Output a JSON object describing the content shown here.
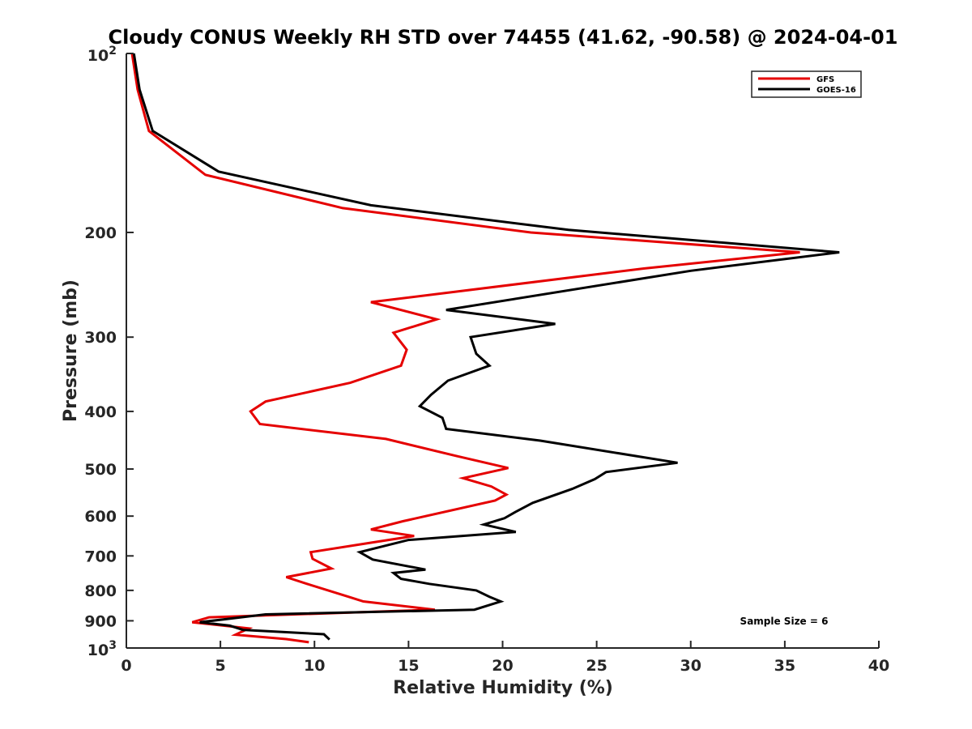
{
  "chart_data": {
    "type": "line",
    "title": "Cloudy CONUS Weekly RH STD over 74455 (41.62, -90.58) @ 2024-04-01",
    "xlabel": "Relative Humidity (%)",
    "ylabel": "Pressure (mb)",
    "xlim": [
      0,
      40
    ],
    "ylim": [
      100,
      1000
    ],
    "y_scale": "log",
    "y_reversed": true,
    "grid": false,
    "legend_position": "top-right",
    "x_ticks": [
      0,
      5,
      10,
      15,
      20,
      25,
      30,
      35,
      40
    ],
    "x_tick_labels": [
      "0",
      "5",
      "10",
      "15",
      "20",
      "25",
      "30",
      "35",
      "40"
    ],
    "y_ticks": [
      {
        "value": 100,
        "base": "10",
        "exp": "2",
        "label": ""
      },
      {
        "value": 200,
        "base": "",
        "exp": "",
        "label": "200"
      },
      {
        "value": 300,
        "base": "",
        "exp": "",
        "label": "300"
      },
      {
        "value": 400,
        "base": "",
        "exp": "",
        "label": "400"
      },
      {
        "value": 500,
        "base": "",
        "exp": "",
        "label": "500"
      },
      {
        "value": 600,
        "base": "",
        "exp": "",
        "label": "600"
      },
      {
        "value": 700,
        "base": "",
        "exp": "",
        "label": "700"
      },
      {
        "value": 800,
        "base": "",
        "exp": "",
        "label": "800"
      },
      {
        "value": 900,
        "base": "",
        "exp": "",
        "label": "900"
      },
      {
        "value": 1000,
        "base": "10",
        "exp": "3",
        "label": ""
      }
    ],
    "series": [
      {
        "name": "GFS",
        "color": "#e50000",
        "points": [
          [
            0.3,
            100
          ],
          [
            0.6,
            115
          ],
          [
            1.2,
            135
          ],
          [
            4.2,
            160
          ],
          [
            11.5,
            182
          ],
          [
            21.5,
            200
          ],
          [
            35.8,
            216
          ],
          [
            27.5,
            230
          ],
          [
            13.0,
            262
          ],
          [
            16.5,
            280
          ],
          [
            14.2,
            295
          ],
          [
            14.9,
            315
          ],
          [
            14.6,
            335
          ],
          [
            11.9,
            358
          ],
          [
            7.4,
            385
          ],
          [
            6.6,
            400
          ],
          [
            7.1,
            420
          ],
          [
            13.8,
            445
          ],
          [
            17.5,
            475
          ],
          [
            20.3,
            498
          ],
          [
            17.9,
            518
          ],
          [
            19.4,
            535
          ],
          [
            20.2,
            552
          ],
          [
            19.6,
            565
          ],
          [
            14.7,
            612
          ],
          [
            13.0,
            632
          ],
          [
            15.3,
            648
          ],
          [
            13.0,
            665
          ],
          [
            9.8,
            690
          ],
          [
            9.9,
            708
          ],
          [
            10.9,
            735
          ],
          [
            8.5,
            760
          ],
          [
            9.6,
            780
          ],
          [
            11.8,
            820
          ],
          [
            12.6,
            835
          ],
          [
            16.4,
            862
          ],
          [
            4.4,
            888
          ],
          [
            3.5,
            905
          ],
          [
            6.5,
            927
          ],
          [
            5.8,
            950
          ],
          [
            8.5,
            966
          ],
          [
            9.7,
            978
          ]
        ]
      },
      {
        "name": "GOES-16",
        "color": "#000000",
        "points": [
          [
            0.4,
            100
          ],
          [
            0.7,
            115
          ],
          [
            1.4,
            135
          ],
          [
            4.9,
            158
          ],
          [
            13.0,
            180
          ],
          [
            23.5,
            198
          ],
          [
            37.9,
            216
          ],
          [
            30.0,
            232
          ],
          [
            17.0,
            270
          ],
          [
            22.8,
            285
          ],
          [
            18.3,
            300
          ],
          [
            18.6,
            320
          ],
          [
            19.3,
            335
          ],
          [
            17.1,
            355
          ],
          [
            16.2,
            375
          ],
          [
            15.6,
            392
          ],
          [
            16.8,
            410
          ],
          [
            17.0,
            428
          ],
          [
            22.0,
            448
          ],
          [
            29.3,
            488
          ],
          [
            25.5,
            506
          ],
          [
            24.9,
            520
          ],
          [
            23.7,
            540
          ],
          [
            21.6,
            570
          ],
          [
            20.7,
            590
          ],
          [
            20.1,
            605
          ],
          [
            19.0,
            620
          ],
          [
            20.7,
            638
          ],
          [
            15.0,
            658
          ],
          [
            12.4,
            690
          ],
          [
            13.1,
            710
          ],
          [
            15.9,
            738
          ],
          [
            14.2,
            748
          ],
          [
            14.6,
            765
          ],
          [
            16.1,
            780
          ],
          [
            18.6,
            800
          ],
          [
            19.3,
            820
          ],
          [
            19.9,
            835
          ],
          [
            18.5,
            862
          ],
          [
            7.4,
            878
          ],
          [
            3.9,
            905
          ],
          [
            5.5,
            917
          ],
          [
            6.2,
            932
          ],
          [
            10.5,
            948
          ],
          [
            10.8,
            968
          ]
        ]
      }
    ],
    "annotation": "Sample Size = 6"
  }
}
